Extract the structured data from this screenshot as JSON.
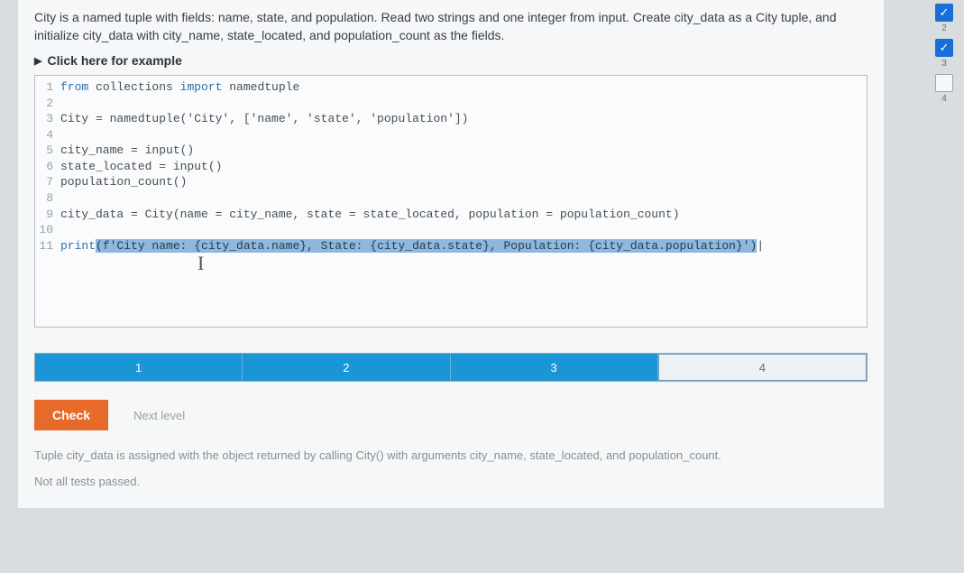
{
  "instructions": "City is a named tuple with fields: name, state, and population. Read two strings and one integer from input. Create city_data as a City tuple, and initialize city_data with city_name, state_located, and population_count as the fields.",
  "example_toggle": "Click here for example",
  "code": {
    "lines": [
      {
        "n": "1",
        "pre": "",
        "kw": "from",
        "mid": " collections ",
        "kw2": "import",
        "post": " namedtuple"
      },
      {
        "n": "2",
        "plain": ""
      },
      {
        "n": "3",
        "plain": "City = namedtuple('City', ['name', 'state', 'population'])"
      },
      {
        "n": "4",
        "plain": ""
      },
      {
        "n": "5",
        "plain": "city_name = input()"
      },
      {
        "n": "6",
        "plain": "state_located = input()"
      },
      {
        "n": "7",
        "plain": "population_count()"
      },
      {
        "n": "8",
        "plain": ""
      },
      {
        "n": "9",
        "plain": "city_data = City(name = city_name, state = state_located, population = population_count)"
      },
      {
        "n": "10",
        "plain": ""
      },
      {
        "n": "11",
        "print_kw": "print",
        "hl_text": "(f'City name: {city_data.name}, State: {city_data.state}, Population: {city_data.population}')",
        "cursor": "|"
      }
    ]
  },
  "progress": {
    "steps": [
      "1",
      "2",
      "3",
      "4"
    ],
    "done_count": 3
  },
  "buttons": {
    "check": "Check",
    "next": "Next level"
  },
  "feedback": {
    "line1": "Tuple city_data is assigned with the object returned by calling City() with arguments city_name, state_located, and population_count.",
    "line2": "Not all tests passed."
  },
  "side": {
    "items": [
      {
        "type": "check",
        "label": "2"
      },
      {
        "type": "check",
        "label": "3"
      },
      {
        "type": "empty",
        "label": "4"
      }
    ]
  },
  "colors": {
    "accent": "#1a95d6",
    "check_btn": "#e86a2a",
    "highlight": "#8fb8e0"
  }
}
